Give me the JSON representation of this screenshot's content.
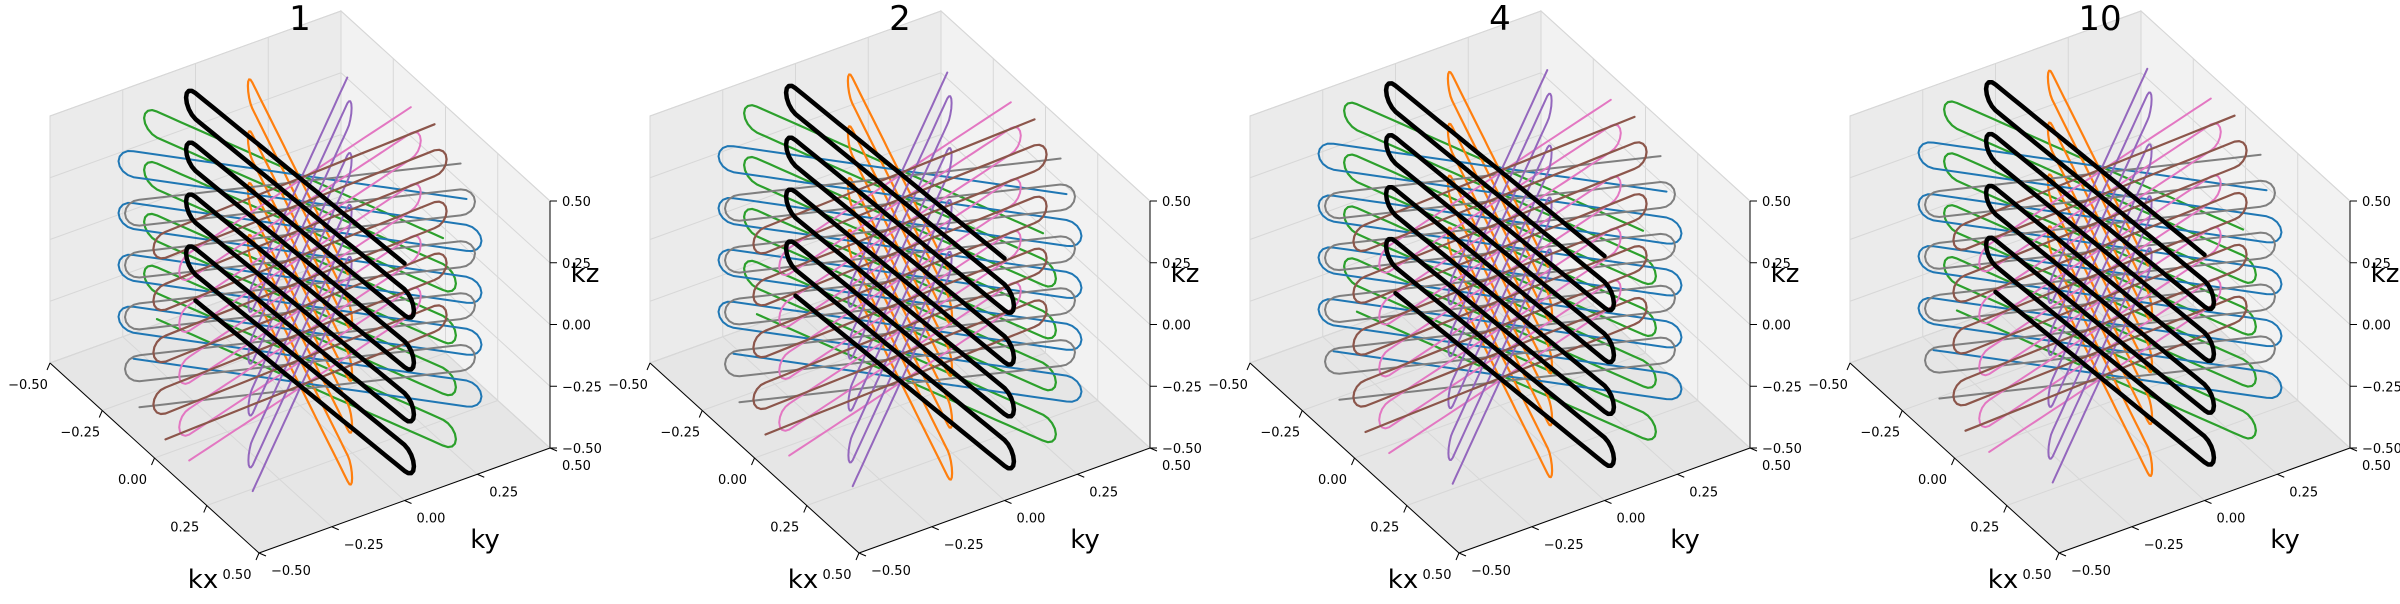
{
  "chart_data": [
    {
      "type": "3d-line",
      "title": "1",
      "xlabel": "kx",
      "ylabel": "ky",
      "zlabel": "kz",
      "xlim": [
        -0.5,
        0.5
      ],
      "ylim": [
        -0.5,
        0.5
      ],
      "zlim": [
        -0.5,
        0.5
      ],
      "xticks": [
        "−0.50",
        "−0.25",
        "0.00",
        "0.25",
        "0.50"
      ],
      "yticks": [
        "−0.50",
        "−0.25",
        "0.00",
        "0.25",
        "0.50"
      ],
      "zticks": [
        "−0.50",
        "−0.25",
        "0.00",
        "0.25",
        "0.50"
      ],
      "grid": true,
      "z_offset": 0
    },
    {
      "type": "3d-line",
      "title": "2",
      "xlabel": "kx",
      "ylabel": "ky",
      "zlabel": "kz",
      "xlim": [
        -0.5,
        0.5
      ],
      "ylim": [
        -0.5,
        0.5
      ],
      "zlim": [
        -0.5,
        0.5
      ],
      "xticks": [
        "−0.50",
        "−0.25",
        "0.00",
        "0.25",
        "0.50"
      ],
      "yticks": [
        "−0.50",
        "−0.25",
        "0.00",
        "0.25",
        "0.50"
      ],
      "zticks": [
        "−0.50",
        "−0.25",
        "0.00",
        "0.25",
        "0.50"
      ],
      "grid": true,
      "z_offset": 0.02
    },
    {
      "type": "3d-line",
      "title": "4",
      "xlabel": "kx",
      "ylabel": "ky",
      "zlabel": "kz",
      "xlim": [
        -0.5,
        0.5
      ],
      "ylim": [
        -0.5,
        0.5
      ],
      "zlim": [
        -0.5,
        0.5
      ],
      "xticks": [
        "−0.50",
        "−0.25",
        "0.00",
        "0.25",
        "0.50"
      ],
      "yticks": [
        "−0.50",
        "−0.25",
        "0.00",
        "0.25",
        "0.50"
      ],
      "zticks": [
        "−0.50",
        "−0.25",
        "0.00",
        "0.25",
        "0.50"
      ],
      "grid": true,
      "z_offset": 0.03
    },
    {
      "type": "3d-line",
      "title": "10",
      "xlabel": "kx",
      "ylabel": "ky",
      "zlabel": "kz",
      "xlim": [
        -0.5,
        0.5
      ],
      "ylim": [
        -0.5,
        0.5
      ],
      "zlim": [
        -0.5,
        0.5
      ],
      "xticks": [
        "−0.50",
        "−0.25",
        "0.00",
        "0.25",
        "0.50"
      ],
      "yticks": [
        "−0.50",
        "−0.25",
        "0.00",
        "0.25",
        "0.50"
      ],
      "zticks": [
        "−0.50",
        "−0.25",
        "0.00",
        "0.25",
        "0.50"
      ],
      "grid": true,
      "z_offset": 0.035
    }
  ],
  "trajectory": {
    "description_free": true,
    "planes": [
      {
        "name": "black",
        "angle_deg": 0,
        "color": "#000000",
        "width": 4.5,
        "bold": true
      },
      {
        "name": "green",
        "angle_deg": 20,
        "color": "#2ca02c",
        "width": 2.2
      },
      {
        "name": "orange",
        "angle_deg": -22,
        "color": "#ff7f0e",
        "width": 2.2
      },
      {
        "name": "blue",
        "angle_deg": 45,
        "color": "#1f77b4",
        "width": 2.0
      },
      {
        "name": "gray",
        "angle_deg": 68,
        "color": "#7f7f7f",
        "width": 2.0
      },
      {
        "name": "pink",
        "angle_deg": 100,
        "color": "#e377c2",
        "width": 2.0
      },
      {
        "name": "purple",
        "angle_deg": 125,
        "color": "#9467bd",
        "width": 2.0
      },
      {
        "name": "brown",
        "angle_deg": 88,
        "color": "#8c564b",
        "width": 2.2
      }
    ],
    "lines_per_plane": 9,
    "kx_extent": 0.5,
    "kz_range": [
      -0.42,
      0.42
    ],
    "kz_tilt": 0.16
  }
}
